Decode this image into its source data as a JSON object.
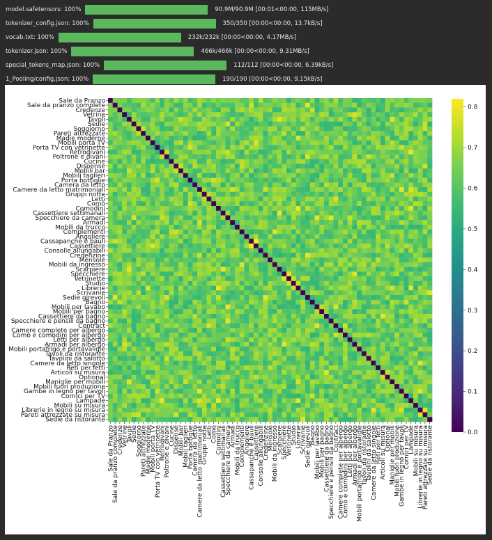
{
  "downloads": [
    {
      "file": "model.safetensors:",
      "percent": 100,
      "stats": "90.9M/90.9M  [00:01<00:00,  115MB/s]"
    },
    {
      "file": "tokenizer_config.json:",
      "percent": 100,
      "stats": "350/350  [00:00<00:00,  13.7kB/s]"
    },
    {
      "file": "vocab.txt:",
      "percent": 100,
      "stats": "232k/232k  [00:00<00:00,  4.17MB/s]"
    },
    {
      "file": "tokenizer.json:",
      "percent": 100,
      "stats": "466k/466k  [00:00<00:00,  9.31MB/s]"
    },
    {
      "file": "special_tokens_map.json:",
      "percent": 100,
      "stats": "112/112  [00:00<00:00,  6.39kB/s]"
    },
    {
      "file": "1_Pooling/config.json:",
      "percent": 100,
      "stats": "190/190  [00:00<00:00,  9.15kB/s]"
    }
  ],
  "colors": {
    "progress_fill": "#5cb85c",
    "text": "#e6e6e6",
    "background": "#2b2b2b"
  },
  "chart_data": {
    "type": "heatmap",
    "colormap": "viridis",
    "title": "",
    "xlabel": "",
    "ylabel": "",
    "vmin": 0.0,
    "vmax": 0.82,
    "colorbar_ticks": [
      "0.0",
      "0.1",
      "0.2",
      "0.3",
      "0.4",
      "0.5",
      "0.6",
      "0.7",
      "0.8"
    ],
    "labels": [
      "Sale da Pranzo",
      "Sale da pranzo complete",
      "Credenze",
      "Vetrine",
      "Tavoli",
      "Sedie",
      "Soggiorno",
      "Pareti attrezzate",
      "Madie moderne",
      "Mobili porta TV",
      "Porta TV con vetrinette",
      "Retrodivani",
      "Poltrone e divani",
      "Cucine",
      "Dispense",
      "Mobili bar",
      "Mobili taglieri",
      "Porta bottiglie",
      "Camera da letto",
      "Camere da letto matrimoniali",
      "Gruppi notte",
      "Letti",
      "Comò",
      "Comodini",
      "Cassettiere settimanali",
      "Specchiere da camera",
      "Armadi",
      "Mobili da trucco",
      "Complementi",
      "Angoliere",
      "Cassapanche e bauli",
      "Cassettiere",
      "Consolle allungabili",
      "Credenzine",
      "Mensole",
      "Mobili da ingresso",
      "Scarpiere",
      "Specchiere",
      "Vetrinette",
      "Studio",
      "Librerie",
      "Scrivanie",
      "Sedie girevoli",
      "Bagno",
      "Mobili per lavabo",
      "Mobili per bagno",
      "Cassettiere da bagno",
      "Specchiere e pensili da bagno",
      "Contract",
      "Camere complete per albergo",
      "Comò e comodini per albergo",
      "Letti per albergo",
      "Armadi per albergo",
      "Mobili portafrigo e portavaligie",
      "Tavoli da ristorante",
      "Tavolini da salotto",
      "Camere da letto singole",
      "Reti per letti",
      "Articoli su misura",
      "Optional",
      "Maniglie per mobili",
      "Mobili fuori produzione",
      "Gambe in legno per tavoli",
      "Cornici per TV",
      "Lampade",
      "Mobili su misura",
      "Librerie in legno su misura",
      "Pareti attrezzate su misura",
      "Sedie da ristorante"
    ],
    "diagonal": 0.0,
    "value_range_offdiag": [
      0.42,
      0.82
    ],
    "highlights": [
      {
        "row": "Cassettiere",
        "col": "Cassapanche e bauli",
        "value": 0.82
      },
      {
        "row": "Cassapanche e bauli",
        "col": "Cassettiere",
        "value": 0.82
      },
      {
        "row": "Pareti attrezzate su misura",
        "col": "Librerie in legno su misura",
        "value": 0.78
      },
      {
        "row": "Librerie in legno su misura",
        "col": "Pareti attrezzate su misura",
        "value": 0.78
      },
      {
        "row": "Studio",
        "col": "Vetrinette",
        "value": 0.76
      },
      {
        "row": "Vetrinette",
        "col": "Studio",
        "value": 0.76
      },
      {
        "row": "Studio",
        "col": "Librerie",
        "value": 0.76
      },
      {
        "row": "Librerie",
        "col": "Studio",
        "value": 0.76
      },
      {
        "row": "Pareti attrezzate",
        "col": "Soggiorno",
        "value": 0.74
      },
      {
        "row": "Soggiorno",
        "col": "Pareti attrezzate",
        "value": 0.74
      },
      {
        "row": "Letti",
        "col": "Gruppi notte",
        "value": 0.74
      },
      {
        "row": "Gruppi notte",
        "col": "Letti",
        "value": 0.74
      },
      {
        "row": "Mobili per bagno",
        "col": "Mobili per lavabo",
        "value": 0.74
      },
      {
        "row": "Mobili per lavabo",
        "col": "Mobili per bagno",
        "value": 0.74
      },
      {
        "row": "Optional",
        "col": "Articoli su misura",
        "value": 0.76
      },
      {
        "row": "Articoli su misura",
        "col": "Optional",
        "value": 0.76
      }
    ]
  }
}
